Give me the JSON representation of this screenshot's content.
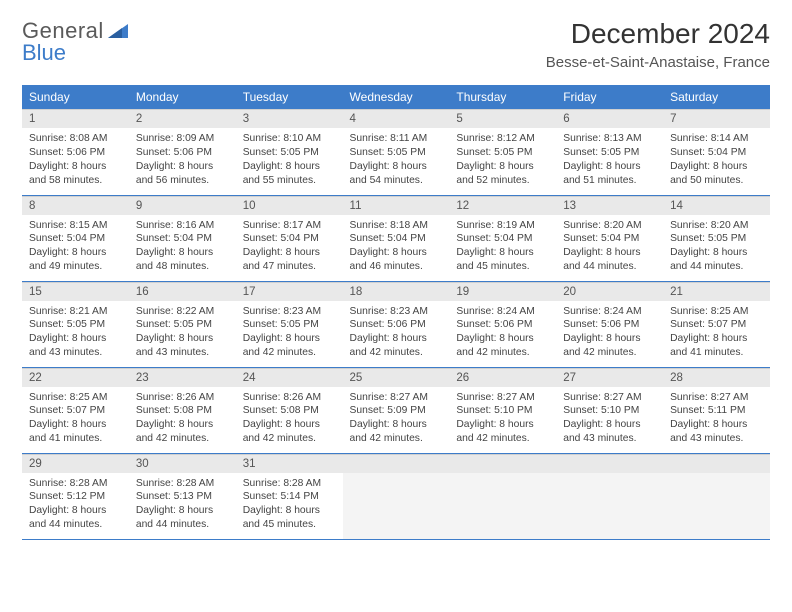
{
  "logo": {
    "word1": "General",
    "word2": "Blue"
  },
  "title": "December 2024",
  "location": "Besse-et-Saint-Anastaise, France",
  "colors": {
    "header_bg": "#3d7cc9",
    "header_text": "#ffffff",
    "daynum_bg": "#e9e9e9",
    "row_border": "#3d7cc9",
    "logo_gray": "#5a5a5a",
    "logo_blue": "#3d7cc9",
    "body_text": "#444444",
    "empty_bg": "#f4f4f4",
    "page_bg": "#ffffff"
  },
  "fonts": {
    "title_size_pt": 21,
    "location_size_pt": 11,
    "header_size_pt": 9,
    "daynum_size_pt": 9,
    "body_size_pt": 8,
    "logo_size_pt": 17
  },
  "columns": [
    "Sunday",
    "Monday",
    "Tuesday",
    "Wednesday",
    "Thursday",
    "Friday",
    "Saturday"
  ],
  "weeks": [
    [
      {
        "n": "1",
        "sr": "8:08 AM",
        "ss": "5:06 PM",
        "dl": "8 hours and 58 minutes."
      },
      {
        "n": "2",
        "sr": "8:09 AM",
        "ss": "5:06 PM",
        "dl": "8 hours and 56 minutes."
      },
      {
        "n": "3",
        "sr": "8:10 AM",
        "ss": "5:05 PM",
        "dl": "8 hours and 55 minutes."
      },
      {
        "n": "4",
        "sr": "8:11 AM",
        "ss": "5:05 PM",
        "dl": "8 hours and 54 minutes."
      },
      {
        "n": "5",
        "sr": "8:12 AM",
        "ss": "5:05 PM",
        "dl": "8 hours and 52 minutes."
      },
      {
        "n": "6",
        "sr": "8:13 AM",
        "ss": "5:05 PM",
        "dl": "8 hours and 51 minutes."
      },
      {
        "n": "7",
        "sr": "8:14 AM",
        "ss": "5:04 PM",
        "dl": "8 hours and 50 minutes."
      }
    ],
    [
      {
        "n": "8",
        "sr": "8:15 AM",
        "ss": "5:04 PM",
        "dl": "8 hours and 49 minutes."
      },
      {
        "n": "9",
        "sr": "8:16 AM",
        "ss": "5:04 PM",
        "dl": "8 hours and 48 minutes."
      },
      {
        "n": "10",
        "sr": "8:17 AM",
        "ss": "5:04 PM",
        "dl": "8 hours and 47 minutes."
      },
      {
        "n": "11",
        "sr": "8:18 AM",
        "ss": "5:04 PM",
        "dl": "8 hours and 46 minutes."
      },
      {
        "n": "12",
        "sr": "8:19 AM",
        "ss": "5:04 PM",
        "dl": "8 hours and 45 minutes."
      },
      {
        "n": "13",
        "sr": "8:20 AM",
        "ss": "5:04 PM",
        "dl": "8 hours and 44 minutes."
      },
      {
        "n": "14",
        "sr": "8:20 AM",
        "ss": "5:05 PM",
        "dl": "8 hours and 44 minutes."
      }
    ],
    [
      {
        "n": "15",
        "sr": "8:21 AM",
        "ss": "5:05 PM",
        "dl": "8 hours and 43 minutes."
      },
      {
        "n": "16",
        "sr": "8:22 AM",
        "ss": "5:05 PM",
        "dl": "8 hours and 43 minutes."
      },
      {
        "n": "17",
        "sr": "8:23 AM",
        "ss": "5:05 PM",
        "dl": "8 hours and 42 minutes."
      },
      {
        "n": "18",
        "sr": "8:23 AM",
        "ss": "5:06 PM",
        "dl": "8 hours and 42 minutes."
      },
      {
        "n": "19",
        "sr": "8:24 AM",
        "ss": "5:06 PM",
        "dl": "8 hours and 42 minutes."
      },
      {
        "n": "20",
        "sr": "8:24 AM",
        "ss": "5:06 PM",
        "dl": "8 hours and 42 minutes."
      },
      {
        "n": "21",
        "sr": "8:25 AM",
        "ss": "5:07 PM",
        "dl": "8 hours and 41 minutes."
      }
    ],
    [
      {
        "n": "22",
        "sr": "8:25 AM",
        "ss": "5:07 PM",
        "dl": "8 hours and 41 minutes."
      },
      {
        "n": "23",
        "sr": "8:26 AM",
        "ss": "5:08 PM",
        "dl": "8 hours and 42 minutes."
      },
      {
        "n": "24",
        "sr": "8:26 AM",
        "ss": "5:08 PM",
        "dl": "8 hours and 42 minutes."
      },
      {
        "n": "25",
        "sr": "8:27 AM",
        "ss": "5:09 PM",
        "dl": "8 hours and 42 minutes."
      },
      {
        "n": "26",
        "sr": "8:27 AM",
        "ss": "5:10 PM",
        "dl": "8 hours and 42 minutes."
      },
      {
        "n": "27",
        "sr": "8:27 AM",
        "ss": "5:10 PM",
        "dl": "8 hours and 43 minutes."
      },
      {
        "n": "28",
        "sr": "8:27 AM",
        "ss": "5:11 PM",
        "dl": "8 hours and 43 minutes."
      }
    ],
    [
      {
        "n": "29",
        "sr": "8:28 AM",
        "ss": "5:12 PM",
        "dl": "8 hours and 44 minutes."
      },
      {
        "n": "30",
        "sr": "8:28 AM",
        "ss": "5:13 PM",
        "dl": "8 hours and 44 minutes."
      },
      {
        "n": "31",
        "sr": "8:28 AM",
        "ss": "5:14 PM",
        "dl": "8 hours and 45 minutes."
      },
      null,
      null,
      null,
      null
    ]
  ],
  "labels": {
    "sunrise": "Sunrise:",
    "sunset": "Sunset:",
    "daylight": "Daylight:"
  }
}
